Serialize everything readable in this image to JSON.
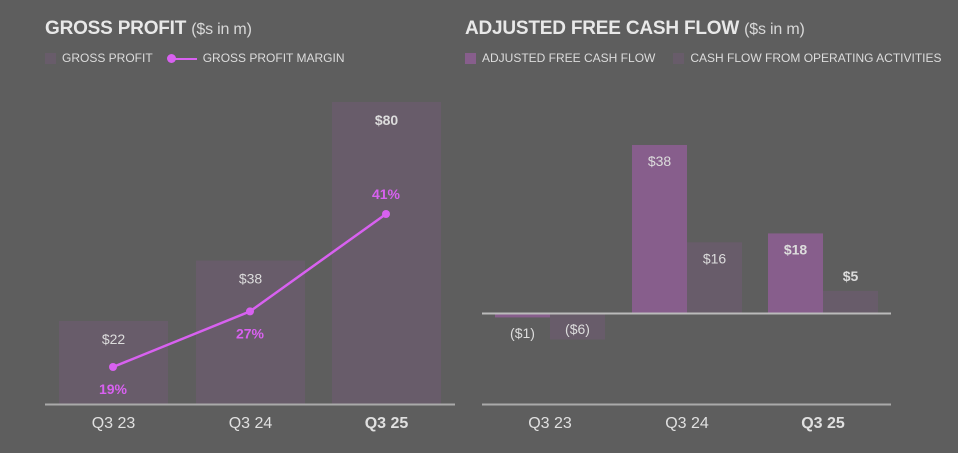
{
  "left": {
    "title": "GROSS PROFIT",
    "unit": "($s in m)",
    "legend": [
      {
        "label": "GROSS PROFIT",
        "type": "bar",
        "color": "#685c6a"
      },
      {
        "label": "GROSS PROFIT MARGIN",
        "type": "line",
        "color": "#d861f0"
      }
    ]
  },
  "right": {
    "title": "ADJUSTED FREE CASH FLOW",
    "unit": "($s in m)",
    "legend": [
      {
        "label": "ADJUSTED FREE CASH FLOW",
        "type": "bar",
        "color": "#875e8c"
      },
      {
        "label": "CASH FLOW FROM OPERATING ACTIVITIES",
        "type": "bar",
        "color": "#685c6a"
      }
    ]
  },
  "chart_data": [
    {
      "type": "bar",
      "title": "GROSS PROFIT ($s in m)",
      "categories": [
        "Q3 23",
        "Q3 24",
        "Q3 25"
      ],
      "series": [
        {
          "name": "GROSS PROFIT",
          "type": "bar",
          "values": [
            22,
            38,
            80
          ],
          "labels": [
            "$22",
            "$38",
            "$80"
          ],
          "color": "#685c6a"
        },
        {
          "name": "GROSS PROFIT MARGIN",
          "type": "line",
          "values": [
            19,
            27,
            41
          ],
          "labels": [
            "19%",
            "27%",
            "41%"
          ],
          "color": "#d861f0"
        }
      ],
      "xlabel": "",
      "ylabel": "",
      "grid": false,
      "legend_position": "top-left"
    },
    {
      "type": "bar",
      "title": "ADJUSTED FREE CASH FLOW ($s in m)",
      "categories": [
        "Q3 23",
        "Q3 24",
        "Q3 25"
      ],
      "series": [
        {
          "name": "ADJUSTED FREE CASH FLOW",
          "values": [
            -1,
            38,
            18
          ],
          "labels": [
            "($1)",
            "$38",
            "$18"
          ],
          "color": "#875e8c"
        },
        {
          "name": "CASH FLOW FROM OPERATING ACTIVITIES",
          "values": [
            -6,
            16,
            5
          ],
          "labels": [
            "($6)",
            "$16",
            "$5"
          ],
          "color": "#685c6a"
        }
      ],
      "xlabel": "",
      "ylabel": "",
      "grid": false,
      "legend_position": "top-left"
    }
  ]
}
